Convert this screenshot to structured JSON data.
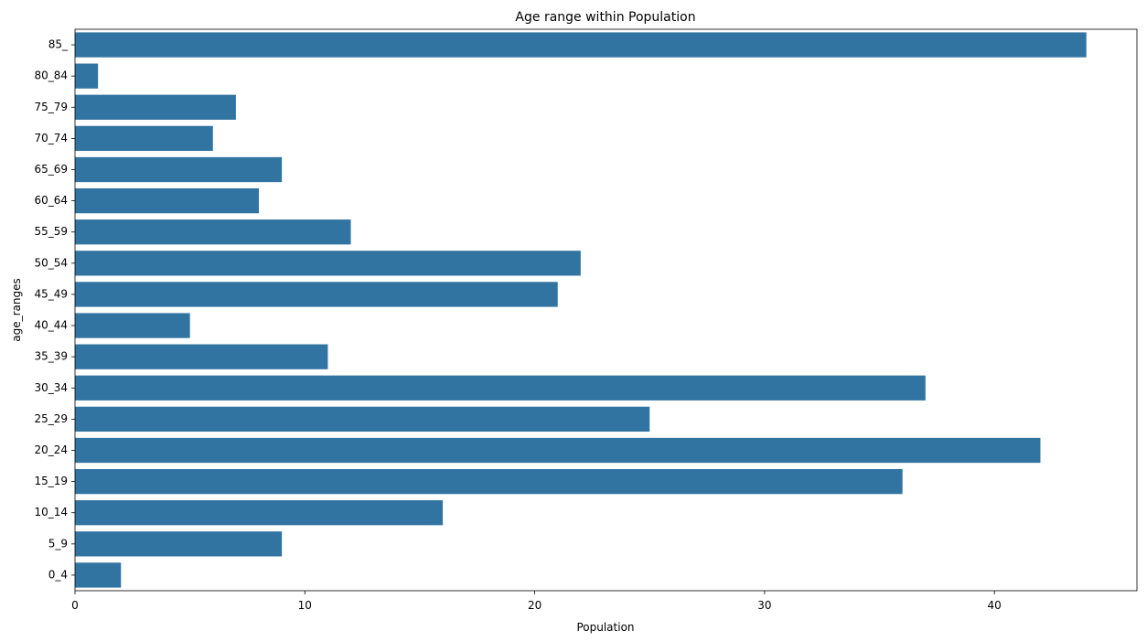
{
  "chart_data": {
    "type": "bar",
    "orientation": "horizontal",
    "title": "Age range within Population",
    "xlabel": "Population",
    "ylabel": "age_ranges",
    "categories": [
      "85_",
      "80_84",
      "75_79",
      "70_74",
      "65_69",
      "60_64",
      "55_59",
      "50_54",
      "45_49",
      "40_44",
      "35_39",
      "30_34",
      "25_29",
      "20_24",
      "15_19",
      "10_14",
      "5_9",
      "0_4"
    ],
    "values": [
      44,
      1,
      7,
      6,
      9,
      8,
      12,
      22,
      21,
      5,
      11,
      37,
      25,
      42,
      36,
      16,
      9,
      2
    ],
    "xlim": [
      0,
      46.2
    ],
    "xticks": [
      0,
      10,
      20,
      30,
      40
    ],
    "grid": false,
    "bar_color": "#3274a1"
  }
}
